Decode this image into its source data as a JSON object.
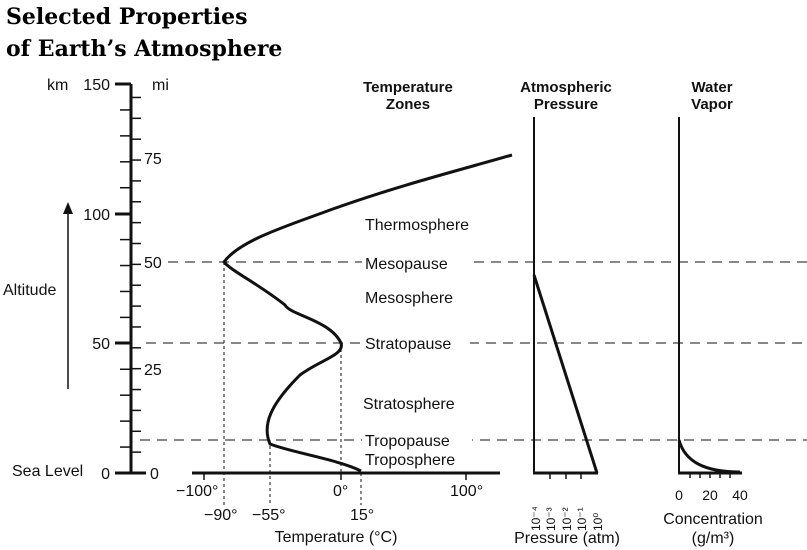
{
  "title": {
    "line1": "Selected Properties",
    "line2": "of Earth’s Atmosphere"
  },
  "altitude": {
    "km_unit": "km",
    "mi_unit": "mi",
    "label": "Altitude",
    "sea_level": "Sea Level",
    "km_ticks": [
      "150",
      "100",
      "50",
      "0"
    ],
    "mi_ticks": [
      "75",
      "50",
      "25",
      "0"
    ]
  },
  "zones": {
    "header_line1": "Temperature",
    "header_line2": "Zones",
    "names": [
      "Thermosphere",
      "Mesopause",
      "Mesosphere",
      "Stratopause",
      "Stratosphere",
      "Tropopause",
      "Troposphere"
    ]
  },
  "temperature": {
    "axis_ticks": [
      "−100°",
      "0°",
      "100°"
    ],
    "marker_labels": [
      "−90°",
      "−55°",
      "15°"
    ],
    "axis_label": "Temperature (°C)"
  },
  "pressure": {
    "header_line1": "Atmospheric",
    "header_line2": "Pressure",
    "ticks": [
      "10⁻⁴",
      "10⁻³",
      "10⁻²",
      "10⁻¹",
      "10⁰"
    ],
    "axis_label": "Pressure (atm)"
  },
  "water_vapor": {
    "header_line1": "Water",
    "header_line2": "Vapor",
    "ticks": [
      "0",
      "20",
      "40"
    ],
    "axis_label_line1": "Concentration",
    "axis_label_line2": "(g/m³)"
  }
}
